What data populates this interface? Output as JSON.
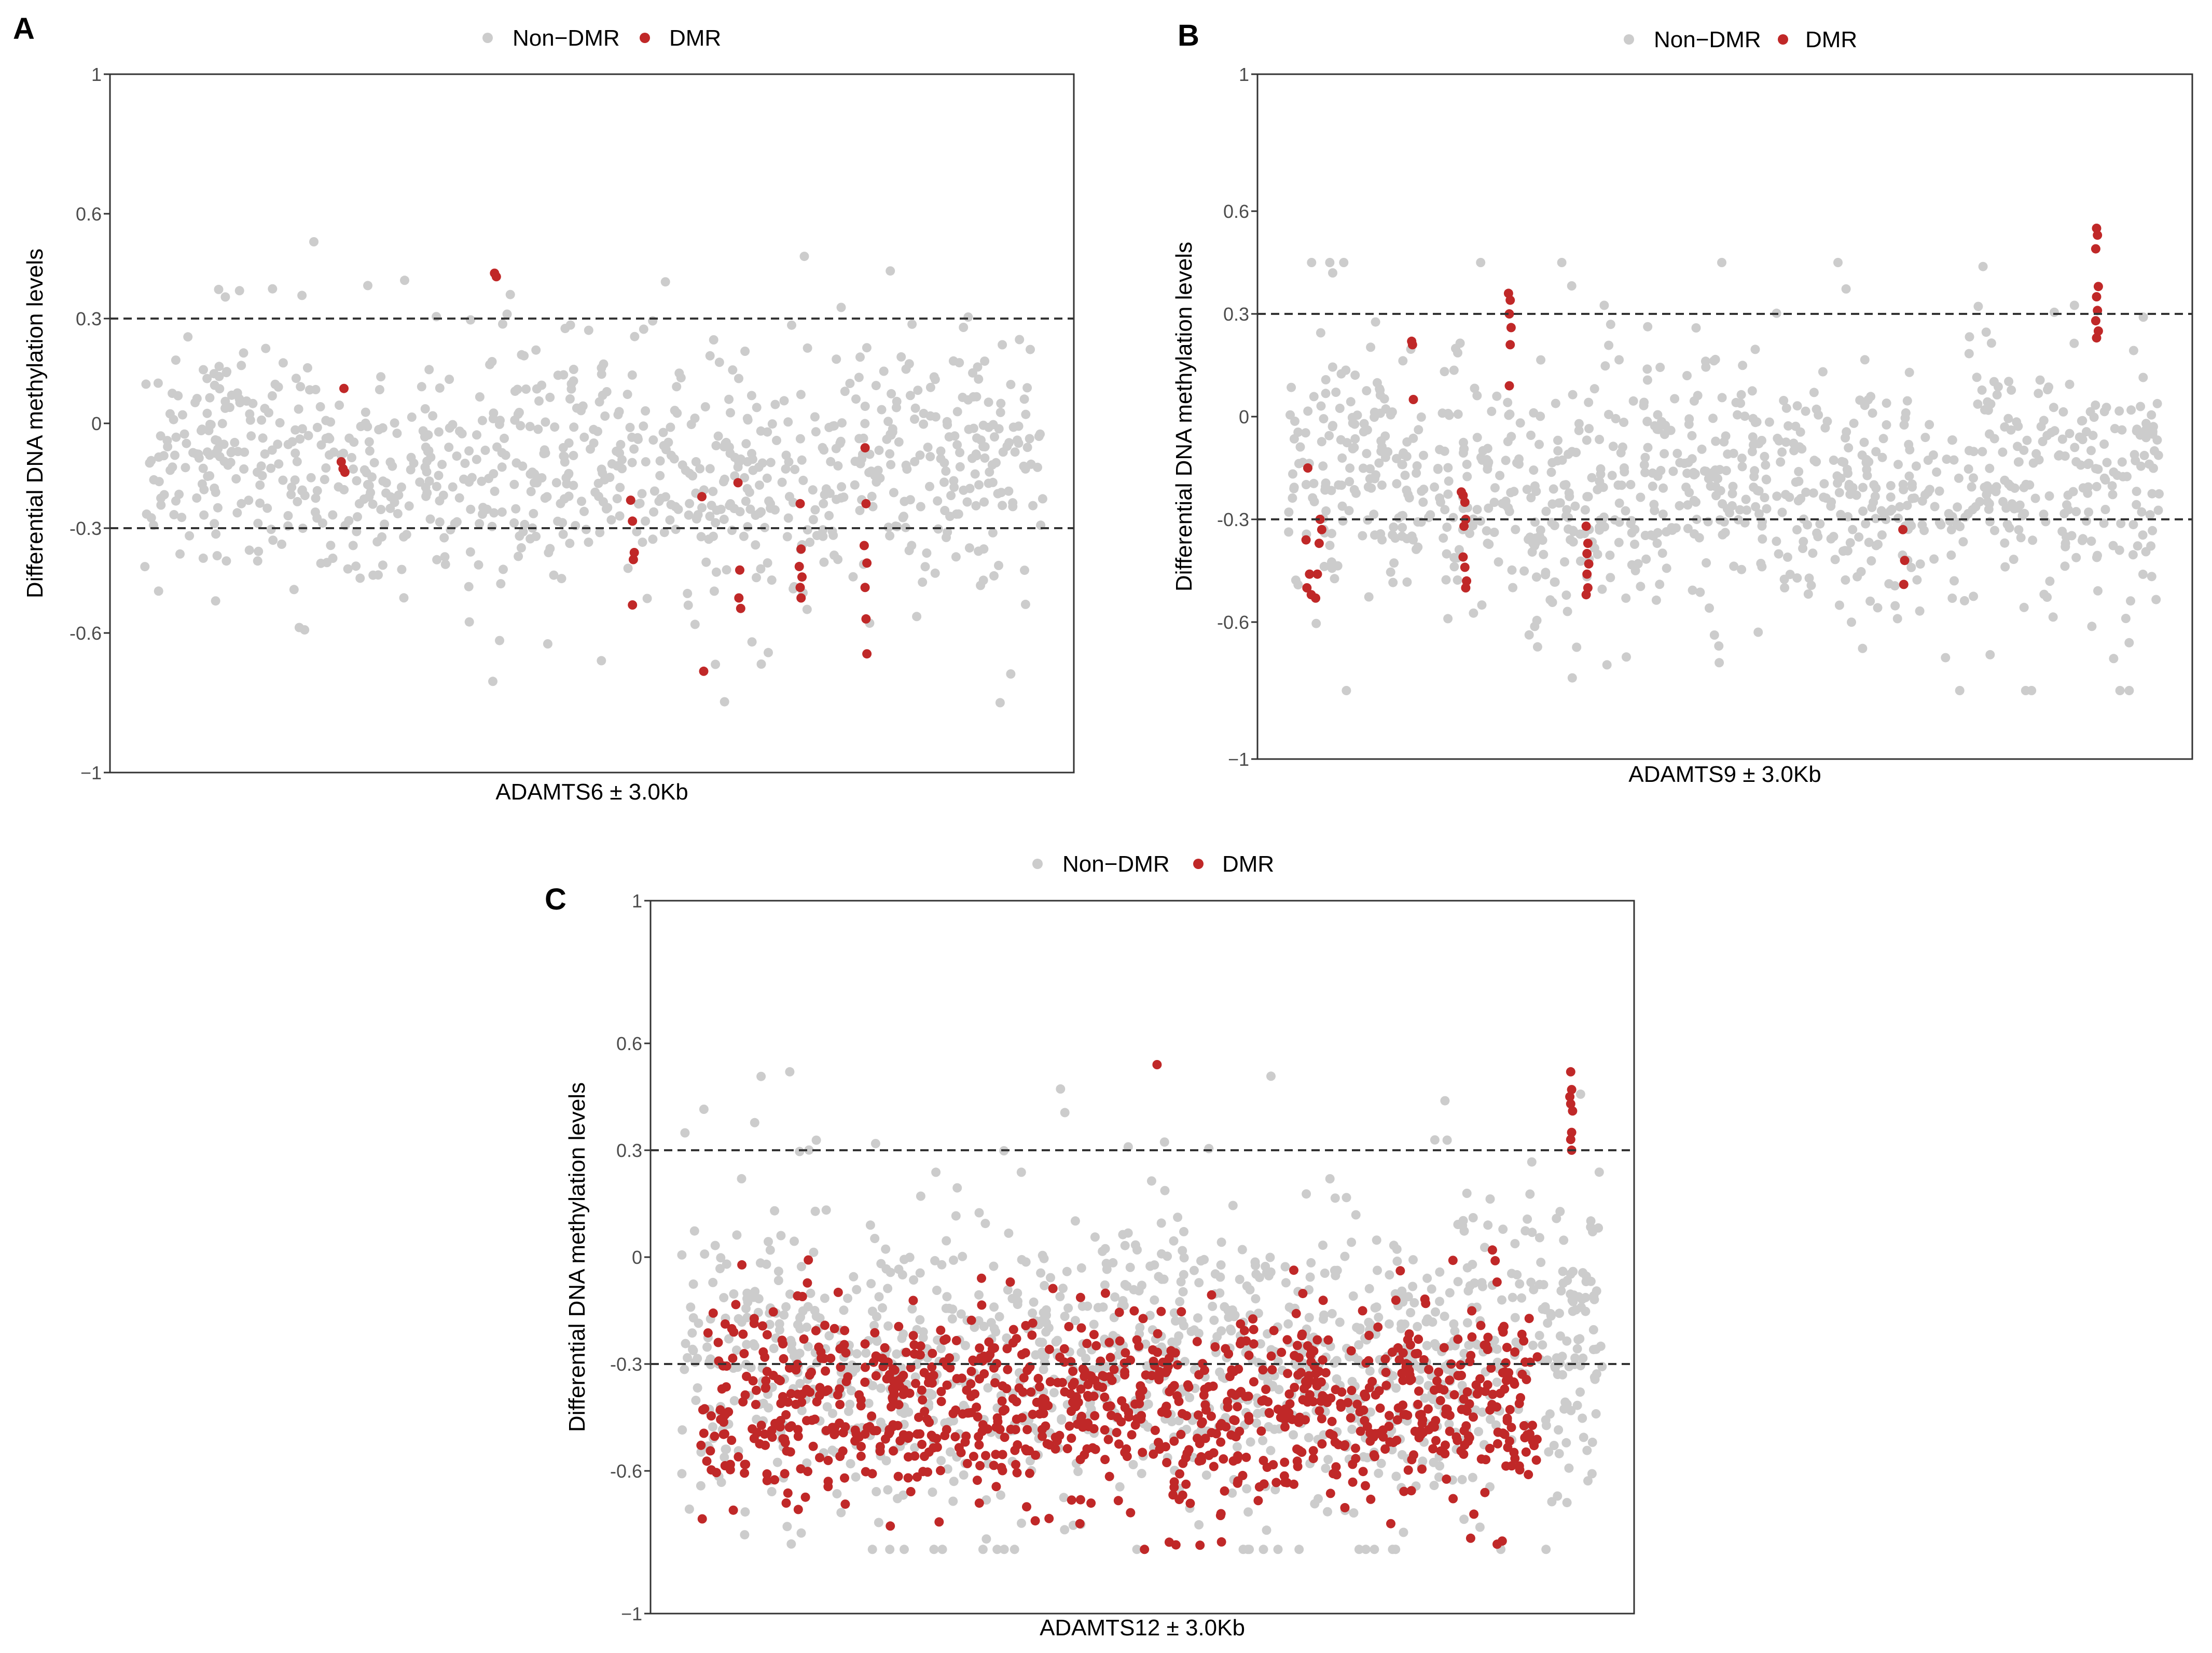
{
  "figure": {
    "colors": {
      "non_dmr": "#cccccc",
      "dmr": "#c02828",
      "frame": "#333333",
      "threshold": "#333333"
    }
  },
  "chart_data": [
    {
      "panel": "A",
      "type": "scatter",
      "legend": [
        {
          "label": "Non−DMR",
          "color": "#cccccc"
        },
        {
          "label": "DMR",
          "color": "#c02828"
        }
      ],
      "legend_position": "top",
      "xlabel": "ADAMTS6 ± 3.0Kb",
      "ylabel": "Differential DNA methylation levels",
      "ylim": [
        -1,
        1
      ],
      "yticks": [
        -1,
        -0.6,
        -0.3,
        0,
        0.3,
        0.6,
        1
      ],
      "ytick_labels": [
        "−1",
        "-0.6",
        "-0.3",
        "0",
        "0.3",
        "0.6",
        "1"
      ],
      "thresholds": [
        0.3,
        -0.3
      ],
      "grid": false,
      "n_points": 900,
      "non_dmr_bulk": {
        "x_range": [
          0,
          100
        ],
        "median": -0.13,
        "spread": 0.22,
        "range": [
          -0.8,
          0.52
        ]
      },
      "dmr_points": [
        [
          22.5,
          0.1
        ],
        [
          22.2,
          -0.11
        ],
        [
          22.4,
          -0.13
        ],
        [
          22.6,
          -0.14
        ],
        [
          39.2,
          0.43
        ],
        [
          39.4,
          0.42
        ],
        [
          54.3,
          -0.22
        ],
        [
          54.5,
          -0.28
        ],
        [
          54.7,
          -0.37
        ],
        [
          54.6,
          -0.39
        ],
        [
          54.5,
          -0.52
        ],
        [
          62.2,
          -0.21
        ],
        [
          62.4,
          -0.71
        ],
        [
          66.2,
          -0.17
        ],
        [
          66.4,
          -0.42
        ],
        [
          66.3,
          -0.5
        ],
        [
          66.5,
          -0.53
        ],
        [
          73.1,
          -0.23
        ],
        [
          73.2,
          -0.36
        ],
        [
          73.0,
          -0.41
        ],
        [
          73.3,
          -0.44
        ],
        [
          73.1,
          -0.47
        ],
        [
          73.2,
          -0.5
        ],
        [
          80.3,
          -0.07
        ],
        [
          80.4,
          -0.23
        ],
        [
          80.2,
          -0.35
        ],
        [
          80.5,
          -0.4
        ],
        [
          80.3,
          -0.47
        ],
        [
          80.4,
          -0.56
        ],
        [
          80.5,
          -0.66
        ]
      ]
    },
    {
      "panel": "B",
      "type": "scatter",
      "legend": [
        {
          "label": "Non−DMR",
          "color": "#cccccc"
        },
        {
          "label": "DMR",
          "color": "#c02828"
        }
      ],
      "legend_position": "top",
      "xlabel": "ADAMTS9 ± 3.0Kb",
      "ylabel": "Differential DNA methylation levels",
      "ylim": [
        -1,
        1
      ],
      "yticks": [
        -1,
        -0.6,
        -0.3,
        0,
        0.3,
        0.6,
        1
      ],
      "ytick_labels": [
        "−1",
        "-0.6",
        "-0.3",
        "0",
        "0.3",
        "0.6",
        "1"
      ],
      "thresholds": [
        0.3,
        -0.3
      ],
      "grid": false,
      "n_points": 1000,
      "non_dmr_bulk": {
        "x_range": [
          0,
          100
        ],
        "median": -0.2,
        "spread": 0.22,
        "range": [
          -0.8,
          0.45
        ]
      },
      "dmr_points": [
        [
          2.2,
          -0.15
        ],
        [
          2.0,
          -0.36
        ],
        [
          2.4,
          -0.46
        ],
        [
          2.1,
          -0.5
        ],
        [
          2.6,
          -0.52
        ],
        [
          3.1,
          -0.53
        ],
        [
          3.6,
          -0.3
        ],
        [
          3.8,
          -0.33
        ],
        [
          3.5,
          -0.37
        ],
        [
          3.3,
          -0.46
        ],
        [
          14.1,
          0.22
        ],
        [
          14.2,
          0.21
        ],
        [
          14.3,
          0.05
        ],
        [
          19.8,
          -0.22
        ],
        [
          20.0,
          -0.23
        ],
        [
          20.2,
          -0.25
        ],
        [
          20.3,
          -0.3
        ],
        [
          20.1,
          -0.32
        ],
        [
          20.0,
          -0.41
        ],
        [
          20.2,
          -0.44
        ],
        [
          20.4,
          -0.48
        ],
        [
          20.3,
          -0.5
        ],
        [
          25.2,
          0.36
        ],
        [
          25.4,
          0.34
        ],
        [
          25.3,
          0.3
        ],
        [
          25.5,
          0.26
        ],
        [
          25.4,
          0.21
        ],
        [
          25.3,
          0.09
        ],
        [
          34.1,
          -0.32
        ],
        [
          34.3,
          -0.37
        ],
        [
          34.2,
          -0.4
        ],
        [
          34.4,
          -0.43
        ],
        [
          34.2,
          -0.46
        ],
        [
          34.3,
          -0.5
        ],
        [
          34.1,
          -0.52
        ],
        [
          70.4,
          -0.33
        ],
        [
          70.6,
          -0.42
        ],
        [
          70.5,
          -0.49
        ],
        [
          92.6,
          0.55
        ],
        [
          92.7,
          0.53
        ],
        [
          92.5,
          0.49
        ],
        [
          92.8,
          0.38
        ],
        [
          92.6,
          0.35
        ],
        [
          92.7,
          0.31
        ],
        [
          92.5,
          0.28
        ],
        [
          92.8,
          0.25
        ],
        [
          92.6,
          0.23
        ]
      ]
    },
    {
      "panel": "C",
      "type": "scatter",
      "legend": [
        {
          "label": "Non−DMR",
          "color": "#cccccc"
        },
        {
          "label": "DMR",
          "color": "#c02828"
        }
      ],
      "legend_position": "top",
      "xlabel": "ADAMTS12 ± 3.0Kb",
      "ylabel": "Differential DNA methylation levels",
      "ylim": [
        -1,
        1
      ],
      "yticks": [
        -1,
        -0.6,
        -0.3,
        0,
        0.3,
        0.6,
        1
      ],
      "ytick_labels": [
        "−1",
        "-0.6",
        "-0.3",
        "0",
        "0.3",
        "0.6",
        "1"
      ],
      "thresholds": [
        0.3,
        -0.3
      ],
      "grid": false,
      "n_points": 2200,
      "non_dmr_bulk": {
        "x_range": [
          0,
          100
        ],
        "median": -0.3,
        "spread": 0.25,
        "range": [
          -0.82,
          0.52
        ]
      },
      "dmr_bulk": {
        "x_range": [
          2,
          93
        ],
        "median": -0.42,
        "spread": 0.14,
        "range": [
          -0.82,
          0.08
        ]
      },
      "dmr_points": [
        [
          51.6,
          0.54
        ],
        [
          96.5,
          0.52
        ],
        [
          96.6,
          0.47
        ],
        [
          96.4,
          0.45
        ],
        [
          96.5,
          0.43
        ],
        [
          96.7,
          0.41
        ],
        [
          96.6,
          0.35
        ],
        [
          96.5,
          0.33
        ],
        [
          96.6,
          0.3
        ],
        [
          88.0,
          0.02
        ],
        [
          88.3,
          -0.01
        ],
        [
          88.5,
          -0.07
        ]
      ]
    }
  ]
}
